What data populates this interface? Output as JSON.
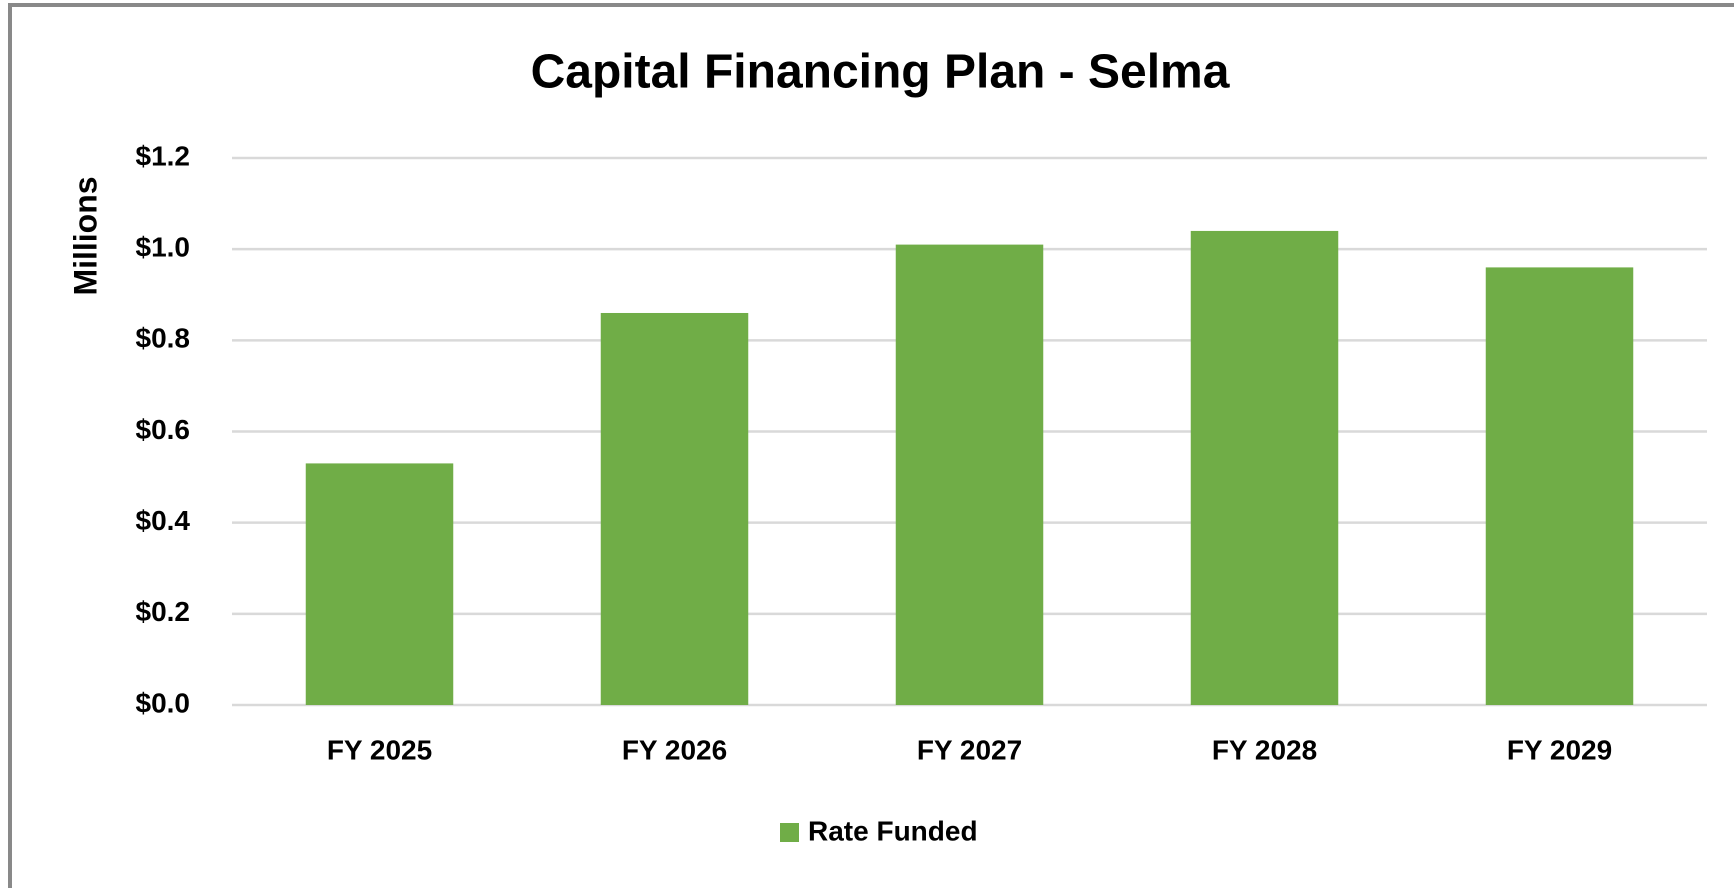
{
  "chart_data": {
    "type": "bar",
    "title": "Capital Financing Plan - Selma",
    "y_axis_label": "Millions",
    "categories": [
      "FY 2025",
      "FY 2026",
      "FY 2027",
      "FY 2028",
      "FY 2029"
    ],
    "series": [
      {
        "name": "Rate Funded",
        "color": "#70ad47",
        "values": [
          0.53,
          0.86,
          1.01,
          1.04,
          0.96
        ]
      }
    ],
    "ylim": [
      0,
      1.2
    ],
    "yticks": [
      {
        "value": 0,
        "label": "$0.0"
      },
      {
        "value": 0.2,
        "label": "$0.2"
      },
      {
        "value": 0.4,
        "label": "$0.4"
      },
      {
        "value": 0.6,
        "label": "$0.6"
      },
      {
        "value": 0.8,
        "label": "$0.8"
      },
      {
        "value": 1.0,
        "label": "$1.0"
      },
      {
        "value": 1.2,
        "label": "$1.2"
      }
    ],
    "grid": true,
    "legend": "bottom"
  }
}
